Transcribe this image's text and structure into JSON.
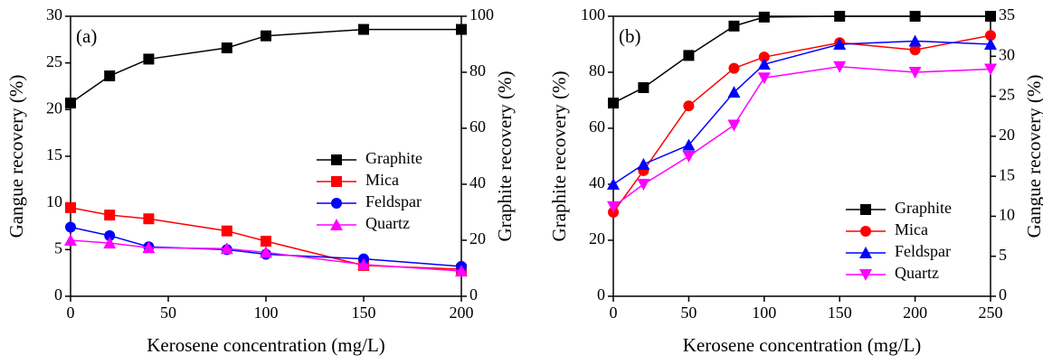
{
  "chart_data": [
    {
      "type": "line",
      "annotation": "(a)",
      "xlabel": "Kerosene concentration (mg/L)",
      "ylabel": "Gangue recovery (%)",
      "y2label": "Graphite recovery (%)",
      "x": [
        0,
        20,
        40,
        80,
        100,
        150,
        200
      ],
      "xlim": [
        0,
        200
      ],
      "xticks": [
        0,
        50,
        100,
        150,
        200
      ],
      "ylim": [
        0,
        30
      ],
      "yticks": [
        0,
        5,
        10,
        15,
        20,
        25,
        30
      ],
      "y2lim": [
        0,
        100
      ],
      "y2ticks": [
        0,
        20,
        40,
        60,
        80,
        100
      ],
      "legend": "center right",
      "series": [
        {
          "name": "Graphite",
          "color": "#000000",
          "marker": "square",
          "axis": "y2",
          "values": [
            69,
            78.7,
            84.7,
            88.7,
            93,
            95.3,
            95.3
          ]
        },
        {
          "name": "Mica",
          "color": "#ff0000",
          "marker": "square",
          "axis": "y",
          "values": [
            9.5,
            8.7,
            8.3,
            7.0,
            5.9,
            3.3,
            2.9
          ]
        },
        {
          "name": "Feldspar",
          "color": "#0000ff",
          "marker": "circle",
          "axis": "y",
          "values": [
            7.4,
            6.5,
            5.3,
            5.0,
            4.5,
            4.0,
            3.2
          ]
        },
        {
          "name": "Quartz",
          "color": "#ff00ff",
          "marker": "triangle",
          "axis": "y",
          "values": [
            6.0,
            5.7,
            5.2,
            5.1,
            4.7,
            3.4,
            2.7
          ]
        }
      ]
    },
    {
      "type": "line",
      "annotation": "(b)",
      "xlabel": "Kerosene concentration (mg/L)",
      "ylabel": "Graphite recovery (%)",
      "y2label": "Gangue recovery (%)",
      "x": [
        0,
        20,
        50,
        80,
        100,
        150,
        200,
        250
      ],
      "xlim": [
        0,
        250
      ],
      "xticks": [
        0,
        50,
        100,
        150,
        200,
        250
      ],
      "ylim": [
        0,
        100
      ],
      "yticks": [
        0,
        20,
        40,
        60,
        80,
        100
      ],
      "y2lim": [
        0,
        35
      ],
      "y2ticks": [
        0,
        5,
        10,
        15,
        20,
        25,
        30,
        35
      ],
      "legend": "lower right",
      "series": [
        {
          "name": "Graphite",
          "color": "#000000",
          "marker": "square",
          "axis": "y",
          "values": [
            69,
            74.5,
            86,
            96.5,
            99.7,
            100,
            100,
            100
          ]
        },
        {
          "name": "Mica",
          "color": "#ff0000",
          "marker": "circle",
          "axis": "y2",
          "values": [
            10.5,
            15.7,
            23.8,
            28.5,
            29.9,
            31.7,
            30.8,
            32.6
          ]
        },
        {
          "name": "Feldspar",
          "color": "#0000ff",
          "marker": "triangle",
          "axis": "y2",
          "values": [
            14,
            16.5,
            18.9,
            25.5,
            29,
            31.5,
            31.9,
            31.5
          ]
        },
        {
          "name": "Quartz",
          "color": "#ff00ff",
          "marker": "triangle-down",
          "axis": "y2",
          "values": [
            11.2,
            14,
            17.5,
            21.4,
            27.3,
            28.7,
            28,
            28.4
          ]
        }
      ]
    }
  ]
}
